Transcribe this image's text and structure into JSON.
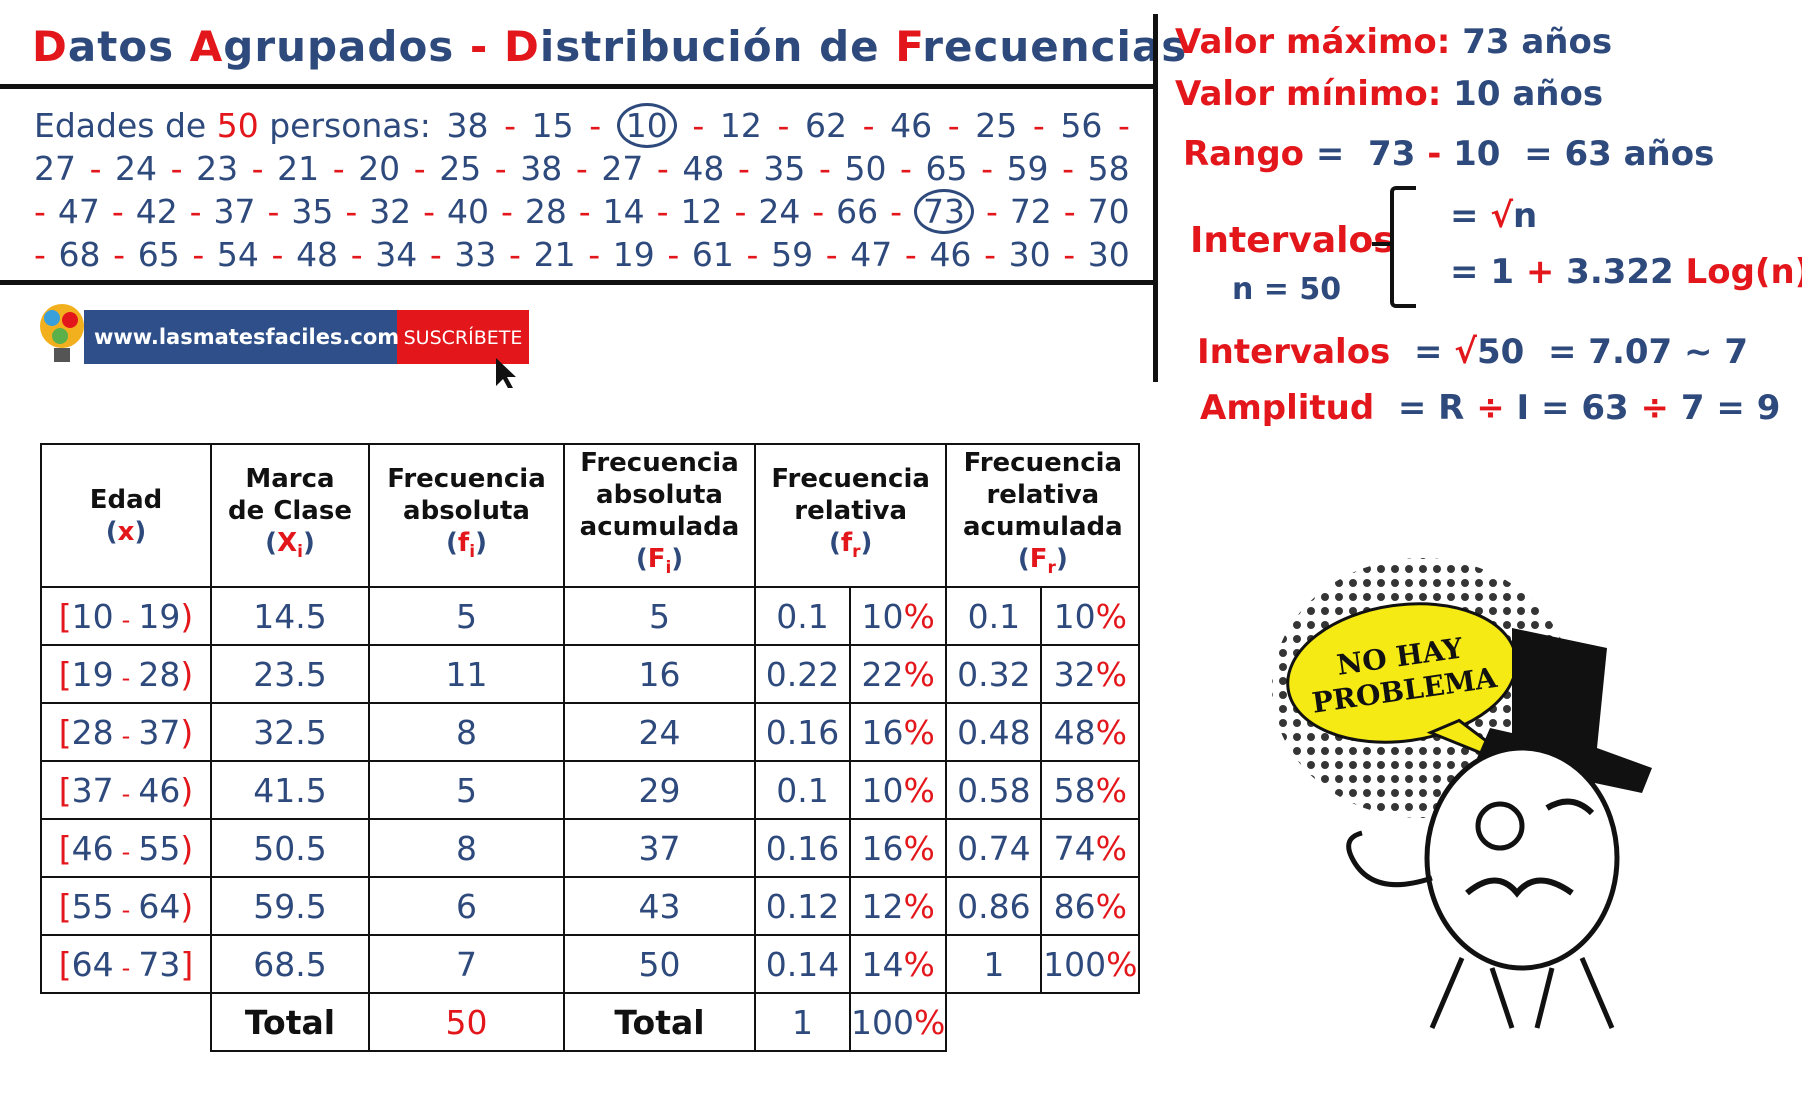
{
  "header": {
    "title": [
      {
        "text": "D",
        "color": "#e3171b"
      },
      {
        "text": "atos ",
        "color": "#2e4a7d"
      },
      {
        "text": "A",
        "color": "#e3171b"
      },
      {
        "text": "grupados ",
        "color": "#2e4a7d"
      },
      {
        "text": "-",
        "color": "#e3171b"
      },
      {
        "text": " ",
        "color": "#2e4a7d"
      },
      {
        "text": "D",
        "color": "#e3171b"
      },
      {
        "text": "istribución de ",
        "color": "#2e4a7d"
      },
      {
        "text": "F",
        "color": "#e3171b"
      },
      {
        "text": "recuencias",
        "color": "#2e4a7d"
      }
    ]
  },
  "data_label": [
    {
      "text": "Edades de ",
      "color": "#2e4a7d"
    },
    {
      "text": "50",
      "color": "#e3171b"
    },
    {
      "text": " personas:",
      "color": "#2e4a7d"
    }
  ],
  "ages": {
    "values": [
      38,
      15,
      10,
      12,
      62,
      46,
      25,
      56,
      27,
      24,
      23,
      21,
      20,
      25,
      38,
      27,
      48,
      35,
      50,
      65,
      59,
      58,
      47,
      42,
      37,
      35,
      32,
      40,
      28,
      14,
      12,
      24,
      66,
      73,
      72,
      70,
      68,
      65,
      54,
      48,
      34,
      33,
      21,
      19,
      61,
      59,
      47,
      46,
      30,
      30
    ],
    "separator": "-",
    "circled": [
      2,
      33
    ]
  },
  "summary": {
    "max": [
      {
        "text": "Valor máximo:",
        "color": "#e3171b"
      },
      {
        "text": " 73 años",
        "color": "#2e4a7d"
      }
    ],
    "min": [
      {
        "text": "Valor mínimo:",
        "color": "#e3171b"
      },
      {
        "text": " 10 años",
        "color": "#2e4a7d"
      }
    ],
    "range": [
      {
        "text": "Rango",
        "color": "#e3171b"
      },
      {
        "text": " =  ",
        "color": "#2e4a7d"
      },
      {
        "text": "73 ",
        "color": "#2e4a7d"
      },
      {
        "text": "-",
        "color": "#e3171b"
      },
      {
        "text": " 10  = 63 años",
        "color": "#2e4a7d"
      }
    ],
    "intervals_label": [
      {
        "text": "Intervalos",
        "color": "#e3171b"
      }
    ],
    "n": [
      {
        "text": "n = 50",
        "color": "#2e4a7d"
      }
    ],
    "formula1": [
      {
        "text": "= ",
        "color": "#2e4a7d"
      },
      {
        "text": "√",
        "color": "#e3171b"
      },
      {
        "text": "n",
        "color": "#2e4a7d"
      }
    ],
    "formula2": [
      {
        "text": "= 1 ",
        "color": "#2e4a7d"
      },
      {
        "text": "+",
        "color": "#e3171b"
      },
      {
        "text": " 3.322 ",
        "color": "#2e4a7d"
      },
      {
        "text": "Log(n)",
        "color": "#e3171b"
      }
    ],
    "intervals": [
      {
        "text": "Intervalos",
        "color": "#e3171b"
      },
      {
        "text": "  = ",
        "color": "#2e4a7d"
      },
      {
        "text": "√",
        "color": "#e3171b"
      },
      {
        "text": "50  = 7.07 ~ 7",
        "color": "#2e4a7d"
      }
    ],
    "amplitude": [
      {
        "text": "Amplitud",
        "color": "#e3171b"
      },
      {
        "text": "  = R ",
        "color": "#2e4a7d"
      },
      {
        "text": "÷",
        "color": "#e3171b"
      },
      {
        "text": " I = 63 ",
        "color": "#2e4a7d"
      },
      {
        "text": "÷",
        "color": "#e3171b"
      },
      {
        "text": " 7 = 9",
        "color": "#2e4a7d"
      }
    ]
  },
  "logo": {
    "url": "www.lasmatesfaciles.com",
    "button": "SUSCRÍBETE"
  },
  "meme": {
    "bubble": [
      "NO HAY",
      "PROBLEMA"
    ]
  },
  "table": {
    "headers": [
      {
        "lines": [
          "Edad"
        ],
        "symbol": {
          "open": "(",
          "letter": "x",
          "close": ")"
        }
      },
      {
        "lines": [
          "Marca",
          "de Clase"
        ],
        "symbol": {
          "open": "(",
          "letter": "X",
          "sub": "i",
          "close": ")"
        }
      },
      {
        "lines": [
          "Frecuencia",
          "absoluta"
        ],
        "symbol": {
          "open": "(",
          "letter": "f",
          "sub": "i",
          "close": ")"
        }
      },
      {
        "lines": [
          "Frecuencia",
          "absoluta",
          "acumulada"
        ],
        "symbol": {
          "open": "(",
          "letter": "F",
          "sub": "i",
          "close": ")"
        }
      },
      {
        "lines": [
          "Frecuencia",
          "relativa"
        ],
        "symbol": {
          "open": "(",
          "letter": "f",
          "sub": "r",
          "close": ")"
        }
      },
      {
        "lines": [
          "Frecuencia",
          "relativa",
          "acumulada"
        ],
        "symbol": {
          "open": "(",
          "letter": "F",
          "sub": "r",
          "close": ")"
        }
      }
    ],
    "percent_sign": "%",
    "rows": [
      {
        "interval": {
          "open": "[",
          "low": 10,
          "sep": "-",
          "high": 19,
          "close": ")"
        },
        "mark": 14.5,
        "fi": 5,
        "Fi": 5,
        "fr": 0.1,
        "fr_pct": 10,
        "Fr": 0.1,
        "Fr_pct": 10
      },
      {
        "interval": {
          "open": "[",
          "low": 19,
          "sep": "-",
          "high": 28,
          "close": ")"
        },
        "mark": 23.5,
        "fi": 11,
        "Fi": 16,
        "fr": 0.22,
        "fr_pct": 22,
        "Fr": 0.32,
        "Fr_pct": 32
      },
      {
        "interval": {
          "open": "[",
          "low": 28,
          "sep": "-",
          "high": 37,
          "close": ")"
        },
        "mark": 32.5,
        "fi": 8,
        "Fi": 24,
        "fr": 0.16,
        "fr_pct": 16,
        "Fr": 0.48,
        "Fr_pct": 48
      },
      {
        "interval": {
          "open": "[",
          "low": 37,
          "sep": "-",
          "high": 46,
          "close": ")"
        },
        "mark": 41.5,
        "fi": 5,
        "Fi": 29,
        "fr": 0.1,
        "fr_pct": 10,
        "Fr": 0.58,
        "Fr_pct": 58
      },
      {
        "interval": {
          "open": "[",
          "low": 46,
          "sep": "-",
          "high": 55,
          "close": ")"
        },
        "mark": 50.5,
        "fi": 8,
        "Fi": 37,
        "fr": 0.16,
        "fr_pct": 16,
        "Fr": 0.74,
        "Fr_pct": 74
      },
      {
        "interval": {
          "open": "[",
          "low": 55,
          "sep": "-",
          "high": 64,
          "close": ")"
        },
        "mark": 59.5,
        "fi": 6,
        "Fi": 43,
        "fr": 0.12,
        "fr_pct": 12,
        "Fr": 0.86,
        "Fr_pct": 86
      },
      {
        "interval": {
          "open": "[",
          "low": 64,
          "sep": "-",
          "high": 73,
          "close": "]"
        },
        "mark": 68.5,
        "fi": 7,
        "Fi": 50,
        "fr": 0.14,
        "fr_pct": 14,
        "Fr": 1,
        "Fr_pct": 100
      }
    ],
    "total": {
      "label": "Total",
      "fi": 50,
      "fr": 1,
      "fr_pct": 100
    }
  }
}
